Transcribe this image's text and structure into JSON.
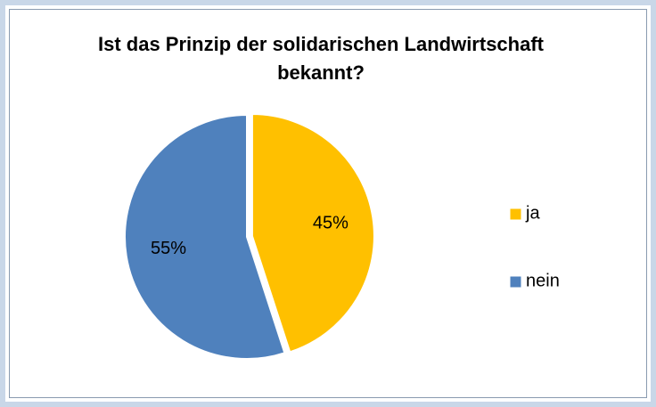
{
  "chart_data": {
    "type": "pie",
    "title": "Ist das Prinzip der solidarischen Landwirtschaft bekannt?",
    "categories": [
      "ja",
      "nein"
    ],
    "values": [
      45,
      55
    ],
    "value_labels": [
      "45%",
      "55%"
    ],
    "colors": [
      "#ffc000",
      "#4f81bd"
    ],
    "legend": "right"
  }
}
